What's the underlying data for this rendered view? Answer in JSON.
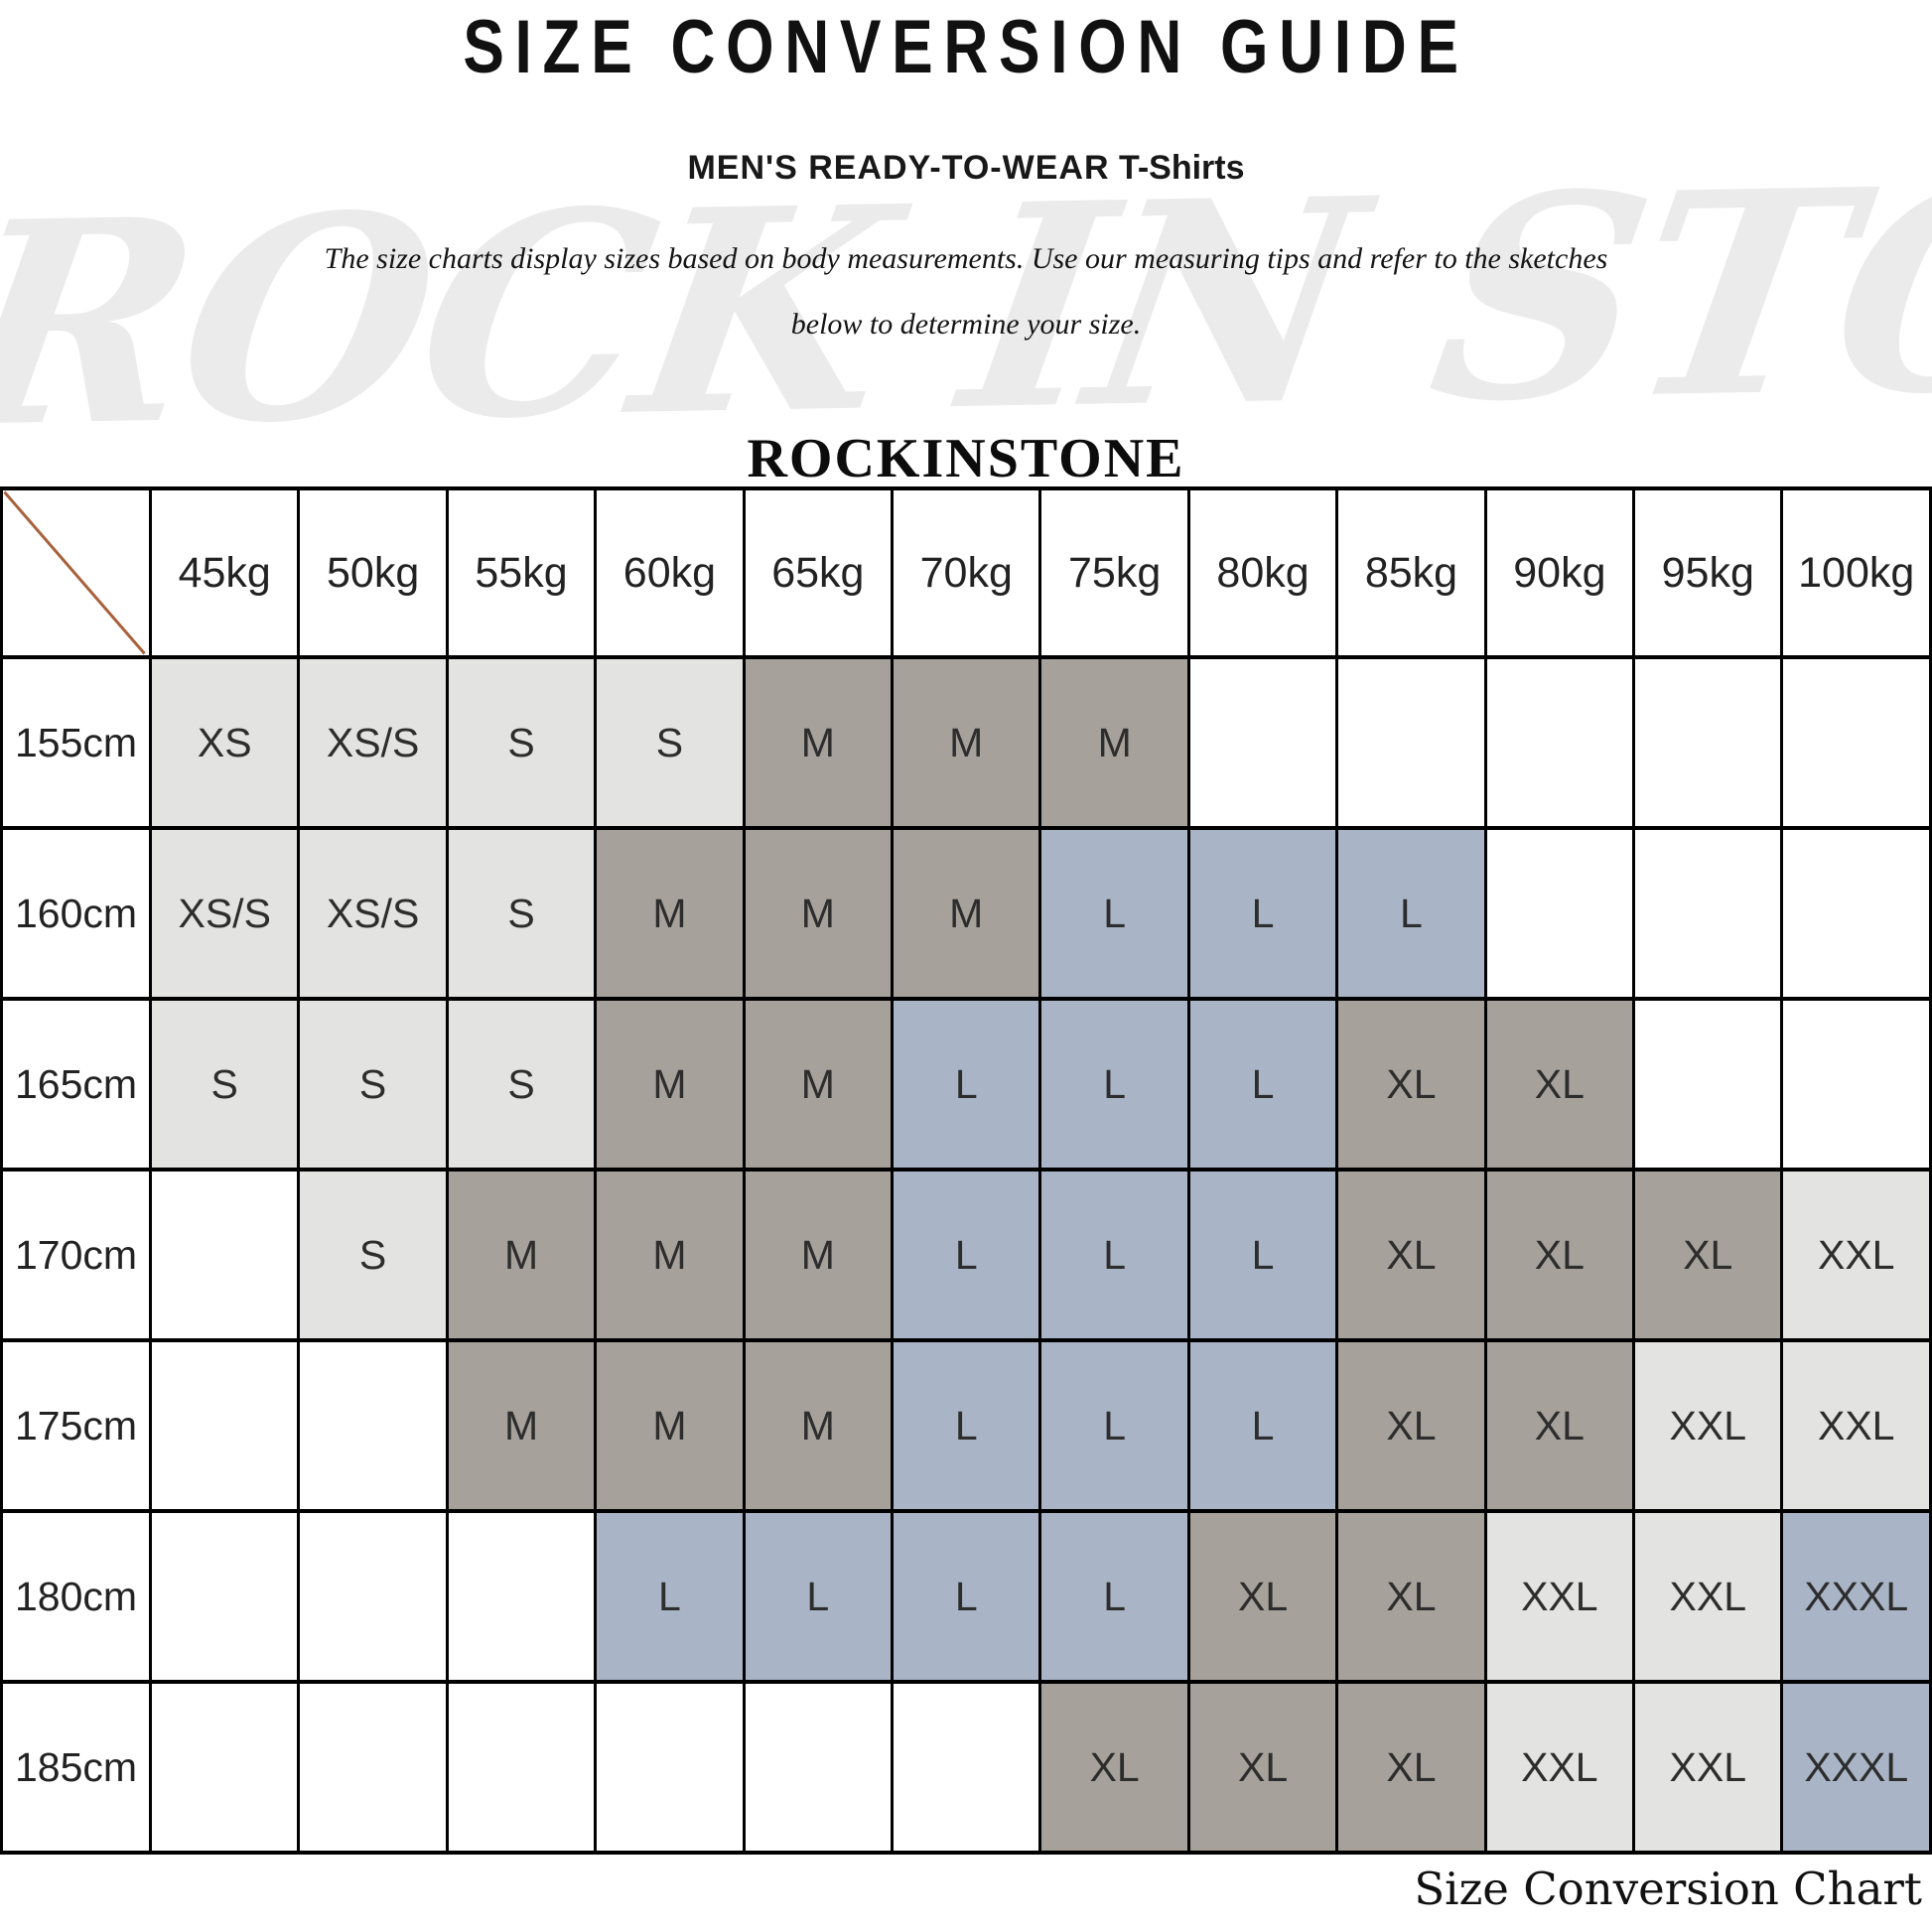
{
  "title": "SIZE CONVERSION GUIDE",
  "subtitle": {
    "main": "MEN'S READY-TO-WEAR",
    "product": "T-Shirts"
  },
  "description": {
    "line1": "The size charts display sizes based on body measurements.  Use our measuring tips and refer to the sketches",
    "line2": "below to determine your size."
  },
  "brand": "ROCKINSTONE",
  "watermark": "ROCK IN STONE",
  "caption": "Size Conversion Chart",
  "chart_data": {
    "type": "table",
    "title": "SIZE CONVERSION GUIDE",
    "columns": [
      "45kg",
      "50kg",
      "55kg",
      "60kg",
      "65kg",
      "70kg",
      "75kg",
      "80kg",
      "85kg",
      "90kg",
      "95kg",
      "100kg"
    ],
    "rows": [
      {
        "label": "155cm",
        "cells": [
          "XS",
          "XS/S",
          "S",
          "S",
          "M",
          "M",
          "M",
          "",
          "",
          "",
          "",
          ""
        ]
      },
      {
        "label": "160cm",
        "cells": [
          "XS/S",
          "XS/S",
          "S",
          "M",
          "M",
          "M",
          "L",
          "L",
          "L",
          "",
          "",
          ""
        ]
      },
      {
        "label": "165cm",
        "cells": [
          "S",
          "S",
          "S",
          "M",
          "M",
          "L",
          "L",
          "L",
          "XL",
          "XL",
          "",
          ""
        ]
      },
      {
        "label": "170cm",
        "cells": [
          "",
          "S",
          "M",
          "M",
          "M",
          "L",
          "L",
          "L",
          "XL",
          "XL",
          "XL",
          "XXL"
        ]
      },
      {
        "label": "175cm",
        "cells": [
          "",
          "",
          "M",
          "M",
          "M",
          "L",
          "L",
          "L",
          "XL",
          "XL",
          "XXL",
          "XXL"
        ]
      },
      {
        "label": "180cm",
        "cells": [
          "",
          "",
          "",
          "L",
          "L",
          "L",
          "L",
          "XL",
          "XL",
          "XXL",
          "XXL",
          "XXXL"
        ]
      },
      {
        "label": "185cm",
        "cells": [
          "",
          "",
          "",
          "",
          "",
          "",
          "XL",
          "XL",
          "XL",
          "XXL",
          "XXL",
          "XXXL"
        ]
      }
    ],
    "size_colors": {
      "XS": "#e3e3e1",
      "XS/S": "#e3e3e1",
      "S": "#e3e3e1",
      "M": "#a6a19b",
      "L": "#a9b5c7",
      "XL": "#a6a19b",
      "XXL": "#e3e3e1",
      "XXXL": "#a9b5c7",
      "": "#ffffff"
    },
    "diagonal_color": "#a8613c",
    "border_color": "#000000",
    "legend_position": "none",
    "grid": true
  }
}
